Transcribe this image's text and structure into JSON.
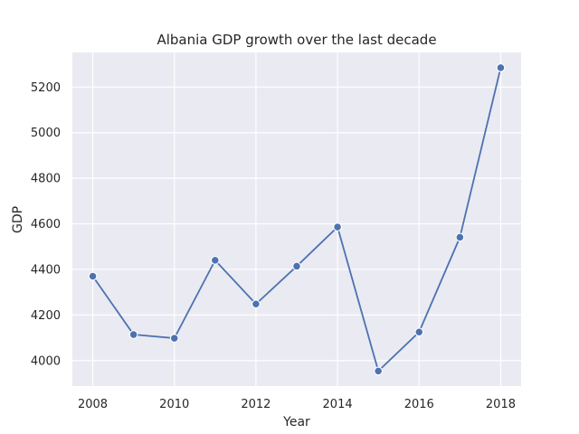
{
  "chart_data": {
    "type": "line",
    "title": "Albania GDP growth over the last decade",
    "xlabel": "Year",
    "ylabel": "GDP",
    "x": [
      2008,
      2009,
      2010,
      2011,
      2012,
      2013,
      2014,
      2015,
      2016,
      2017,
      2018
    ],
    "series": [
      {
        "values": [
          4370,
          4114,
          4098,
          4440,
          4248,
          4414,
          4586,
          3954,
          4125,
          4541,
          5285
        ],
        "color": "#4c72b0",
        "marker": "circle"
      }
    ],
    "xlim": [
      2007.5,
      2018.5
    ],
    "ylim": [
      3888,
      5352
    ],
    "xticks": [
      "2008",
      "2010",
      "2012",
      "2014",
      "2016",
      "2018"
    ],
    "yticks": [
      "4000",
      "4200",
      "4400",
      "4600",
      "4800",
      "5000",
      "5200"
    ],
    "grid": true,
    "background_color": "#eaeaf2"
  }
}
